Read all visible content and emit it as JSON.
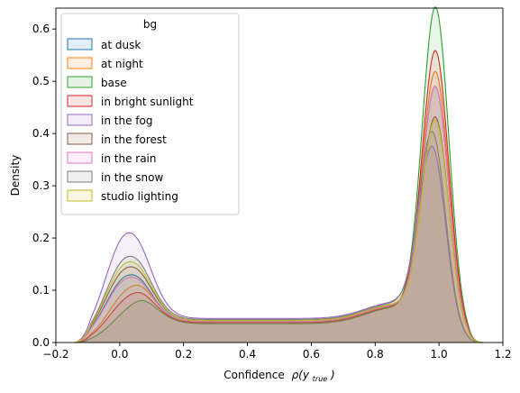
{
  "chart_data": {
    "type": "area",
    "xlabel": "Confidence",
    "xlabel_math": "ρ(y",
    "xlabel_sub": "true",
    "xlabel_close": ")",
    "ylabel": "Density",
    "xlim": [
      -0.2,
      1.2
    ],
    "ylim": [
      0.0,
      0.64
    ],
    "xticks": [
      -0.2,
      0.0,
      0.2,
      0.4,
      0.6,
      0.8,
      1.0,
      1.2
    ],
    "xtick_labels": [
      "−0.2",
      "0.0",
      "0.2",
      "0.4",
      "0.6",
      "0.8",
      "1.0",
      "1.2"
    ],
    "yticks": [
      0.0,
      0.1,
      0.2,
      0.3,
      0.4,
      0.5,
      0.6
    ],
    "ytick_labels": [
      "0.0",
      "0.1",
      "0.2",
      "0.3",
      "0.4",
      "0.5",
      "0.6"
    ],
    "grid": false,
    "legend_title": "bg",
    "legend_position": "top-left",
    "x_support": [
      -0.14,
      1.14
    ],
    "series": [
      {
        "name": "at dusk",
        "color": "#1f77b4",
        "left_peak": [
          0.02,
          0.12
        ],
        "right_peak": [
          0.99,
          0.45
        ],
        "mid_level": 0.04
      },
      {
        "name": "at night",
        "color": "#ff7f0e",
        "left_peak": [
          0.03,
          0.095
        ],
        "right_peak": [
          0.99,
          0.48
        ],
        "mid_level": 0.038
      },
      {
        "name": "base",
        "color": "#2ca02c",
        "left_peak": [
          0.04,
          0.06
        ],
        "right_peak": [
          0.99,
          0.605
        ],
        "mid_level": 0.036
      },
      {
        "name": "in bright sunlight",
        "color": "#d62728",
        "left_peak": [
          0.03,
          0.08
        ],
        "right_peak": [
          0.99,
          0.52
        ],
        "mid_level": 0.038
      },
      {
        "name": "in the fog",
        "color": "#9467bd",
        "left_peak": [
          0.02,
          0.2
        ],
        "right_peak": [
          0.98,
          0.325
        ],
        "mid_level": 0.046
      },
      {
        "name": "in the forest",
        "color": "#8c564b",
        "left_peak": [
          0.02,
          0.135
        ],
        "right_peak": [
          0.99,
          0.39
        ],
        "mid_level": 0.042
      },
      {
        "name": "in the rain",
        "color": "#e377c2",
        "left_peak": [
          0.02,
          0.115
        ],
        "right_peak": [
          0.99,
          0.45
        ],
        "mid_level": 0.04
      },
      {
        "name": "in the snow",
        "color": "#7f7f7f",
        "left_peak": [
          0.02,
          0.155
        ],
        "right_peak": [
          0.98,
          0.355
        ],
        "mid_level": 0.044
      },
      {
        "name": "studio lighting",
        "color": "#bcbd22",
        "left_peak": [
          0.02,
          0.145
        ],
        "right_peak": [
          0.99,
          0.385
        ],
        "mid_level": 0.042
      }
    ]
  }
}
